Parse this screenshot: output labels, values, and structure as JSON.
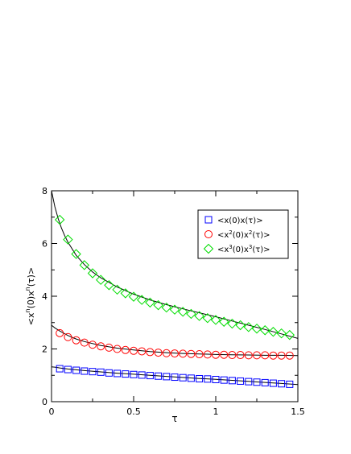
{
  "chart_data": {
    "type": "scatter",
    "xlabel": "τ",
    "ylabel": "<x^n(0)x^n(τ)>",
    "xlim": [
      0,
      1.5
    ],
    "ylim": [
      0,
      8
    ],
    "xticks": [
      0,
      0.5,
      1,
      1.5
    ],
    "xtick_labels": [
      "0",
      "0.5",
      "1",
      "1.5"
    ],
    "yticks": [
      0,
      2,
      4,
      6,
      8
    ],
    "ytick_labels": [
      "0",
      "2",
      "4",
      "6",
      "8"
    ],
    "grid": false,
    "legend_position": "top-right",
    "legend": [
      {
        "base": "<x(0)x(τ)>",
        "prefix": "<x(0)x(τ)>",
        "sup1": "",
        "mid": "",
        "sup2": "",
        "suffix": ""
      },
      {
        "base": "<x2(0)x2(τ)>",
        "prefix": "<x",
        "sup1": "2",
        "mid": "(0)x",
        "sup2": "2",
        "suffix": "(τ)>"
      },
      {
        "base": "<x3(0)x3(τ)>",
        "prefix": "<x",
        "sup1": "3",
        "mid": "(0)x",
        "sup2": "3",
        "suffix": "(τ)>"
      }
    ],
    "x": [
      0.05,
      0.1,
      0.15,
      0.2,
      0.25,
      0.3,
      0.35,
      0.4,
      0.45,
      0.5,
      0.55,
      0.6,
      0.65,
      0.7,
      0.75,
      0.8,
      0.85,
      0.9,
      0.95,
      1.0,
      1.05,
      1.1,
      1.15,
      1.2,
      1.25,
      1.3,
      1.35,
      1.4,
      1.45
    ],
    "series": [
      {
        "marker": "square",
        "color": "#0000ff",
        "values": [
          1.25,
          1.22,
          1.19,
          1.16,
          1.14,
          1.12,
          1.09,
          1.07,
          1.05,
          1.03,
          1.01,
          0.99,
          0.97,
          0.95,
          0.93,
          0.91,
          0.89,
          0.87,
          0.86,
          0.84,
          0.82,
          0.8,
          0.78,
          0.76,
          0.74,
          0.72,
          0.7,
          0.68,
          0.66
        ]
      },
      {
        "marker": "circle",
        "color": "#ff0000",
        "values": [
          2.6,
          2.45,
          2.33,
          2.24,
          2.16,
          2.1,
          2.05,
          2.0,
          1.96,
          1.93,
          1.91,
          1.88,
          1.86,
          1.84,
          1.83,
          1.82,
          1.81,
          1.8,
          1.79,
          1.78,
          1.78,
          1.77,
          1.77,
          1.76,
          1.76,
          1.76,
          1.75,
          1.75,
          1.75
        ]
      },
      {
        "marker": "diamond",
        "color": "#00dd00",
        "values": [
          6.9,
          6.15,
          5.6,
          5.18,
          4.87,
          4.62,
          4.42,
          4.25,
          4.11,
          3.98,
          3.86,
          3.76,
          3.66,
          3.57,
          3.49,
          3.41,
          3.33,
          3.25,
          3.17,
          3.1,
          3.03,
          2.96,
          2.9,
          2.83,
          2.77,
          2.71,
          2.65,
          2.59,
          2.53
        ]
      }
    ],
    "fit_curves": [
      {
        "color": "#000000",
        "x": [
          0,
          0.02,
          0.05,
          0.1,
          0.15,
          0.2,
          0.3,
          0.4,
          0.5,
          0.6,
          0.7,
          0.8,
          0.9,
          1.0,
          1.1,
          1.2,
          1.3,
          1.4,
          1.5
        ],
        "values": [
          1.32,
          1.31,
          1.28,
          1.24,
          1.21,
          1.18,
          1.13,
          1.08,
          1.04,
          1.0,
          0.96,
          0.92,
          0.88,
          0.85,
          0.81,
          0.77,
          0.73,
          0.69,
          0.65
        ]
      },
      {
        "color": "#000000",
        "x": [
          0,
          0.02,
          0.05,
          0.1,
          0.15,
          0.2,
          0.3,
          0.4,
          0.5,
          0.6,
          0.7,
          0.8,
          0.9,
          1.0,
          1.1,
          1.2,
          1.3,
          1.4,
          1.5
        ],
        "values": [
          2.9,
          2.8,
          2.68,
          2.51,
          2.38,
          2.28,
          2.13,
          2.03,
          1.96,
          1.9,
          1.86,
          1.83,
          1.81,
          1.79,
          1.78,
          1.77,
          1.76,
          1.76,
          1.75
        ]
      },
      {
        "color": "#000000",
        "x": [
          0,
          0.02,
          0.04,
          0.06,
          0.08,
          0.1,
          0.15,
          0.2,
          0.25,
          0.3,
          0.4,
          0.5,
          0.6,
          0.7,
          0.8,
          0.9,
          1.0,
          1.1,
          1.2,
          1.3,
          1.4,
          1.5
        ],
        "values": [
          8.0,
          7.4,
          6.95,
          6.6,
          6.3,
          6.05,
          5.55,
          5.2,
          4.92,
          4.7,
          4.35,
          4.08,
          3.86,
          3.68,
          3.52,
          3.37,
          3.22,
          3.06,
          2.9,
          2.74,
          2.57,
          2.4
        ]
      }
    ]
  }
}
